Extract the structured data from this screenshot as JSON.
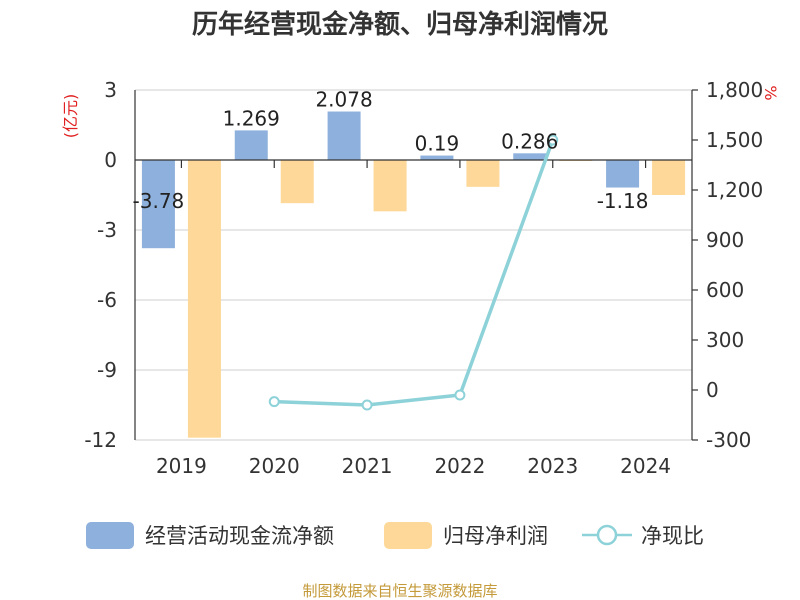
{
  "chart_data": {
    "type": "bar",
    "title": "历年经营现金净额、归母净利润情况",
    "left_unit": "(亿元)",
    "right_unit": "%",
    "categories": [
      "2019",
      "2020",
      "2021",
      "2022",
      "2023",
      "2024"
    ],
    "ylim_left": [
      -12,
      3
    ],
    "yticks_left": [
      3,
      0,
      -3,
      -6,
      -9,
      -12
    ],
    "ylim_right": [
      -300,
      1800
    ],
    "yticks_right": [
      "1,800",
      "1,500",
      "1,200",
      "900",
      "600",
      "300",
      "0",
      "-300"
    ],
    "yticks_right_values": [
      1800,
      1500,
      1200,
      900,
      600,
      300,
      0,
      -300
    ],
    "series": [
      {
        "name": "经营活动现金流净额",
        "kind": "bar",
        "axis": "left",
        "color": "#8eb0dc",
        "values": [
          -3.78,
          1.269,
          2.078,
          0.19,
          0.286,
          -1.18
        ],
        "labels": [
          "-3.78",
          "1.269",
          "2.078",
          "0.19",
          "0.286",
          "-1.18"
        ]
      },
      {
        "name": "归母净利润",
        "kind": "bar",
        "axis": "left",
        "color": "#fdd898",
        "values": [
          -11.9,
          -1.85,
          -2.2,
          -1.15,
          -0.02,
          -1.5
        ]
      },
      {
        "name": "净现比",
        "kind": "line",
        "axis": "right",
        "color": "#8dd2d8",
        "values": [
          null,
          -70,
          -90,
          -30,
          1500,
          null
        ]
      }
    ],
    "grid": true,
    "legend_position": "bottom"
  },
  "source": "制图数据来自恒生聚源数据库"
}
